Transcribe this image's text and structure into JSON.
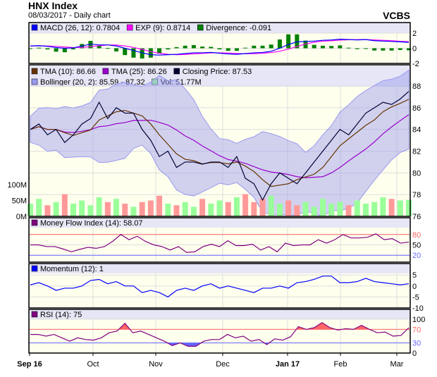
{
  "header": {
    "title": "HNX Index",
    "subtitle": "08/03/2017 - Daily chart",
    "brand": "VCBS"
  },
  "colors": {
    "plot_bg": "#ffffee",
    "legend_bg": "#e6e6f6",
    "macd": "#0000ff",
    "exp": "#ff00ff",
    "divergence": "#008000",
    "tma10": "#663300",
    "tma25": "#9900cc",
    "close": "#000033",
    "bollinger": "#9999ee",
    "vol_up": "#99ff99",
    "vol_down": "#ff9999",
    "mfi": "#800080",
    "momentum": "#0000ff",
    "rsi": "#800080",
    "upper": "#ff6666",
    "lower": "#6666ff"
  },
  "chart_data": [
    {
      "type": "line",
      "name": "macd",
      "legend": [
        "MACD (26, 12): 0.7804",
        "EXP (9): 0.8714",
        "Divergence: -0.091"
      ],
      "ylim": [
        -2,
        2
      ],
      "yticks": [
        "2",
        "0",
        "-2"
      ],
      "macd": [
        0.3,
        0.35,
        0.25,
        0.1,
        0,
        0.05,
        0.3,
        0.55,
        0.45,
        0.45,
        0.3,
        0,
        -0.3,
        -0.6,
        -0.85,
        -0.9,
        -0.85,
        -0.8,
        -0.7,
        -0.6,
        -0.6,
        -0.55,
        -0.65,
        -0.75,
        -0.8,
        -0.7,
        -0.6,
        -0.55,
        -0.4,
        0,
        0.5,
        0.85,
        0.9,
        0.95,
        1.05,
        1.1,
        1.2,
        1.15,
        1.1,
        1.15,
        1.0,
        0.95,
        0.9,
        0.85,
        0.78
      ]
    },
    {
      "type": "line",
      "name": "price",
      "legend": [
        "TMA (10): 86.66",
        "TMA (25): 86.26",
        "Closing Price: 87.53",
        "Bollinger (20, 2): 85.59 - 87.32",
        "Vol: 51.77M"
      ],
      "ylim": [
        76,
        88
      ],
      "yticks": [
        "88",
        "86",
        "84",
        "82",
        "80",
        "78",
        "76"
      ],
      "vol_ticks": [
        "100M",
        "50M",
        "0M"
      ],
      "close": [
        84,
        84.5,
        83.5,
        84,
        82.8,
        83.5,
        84.5,
        85,
        86.5,
        85,
        86,
        85.5,
        85.5,
        84,
        83,
        81.5,
        82,
        80.5,
        81,
        81,
        80.8,
        81,
        81,
        80.5,
        81.5,
        79.5,
        79,
        77.5,
        79,
        80,
        79.5,
        79,
        80,
        81,
        82,
        83,
        84,
        83.5,
        84.5,
        85.5,
        86,
        86.5,
        86.3,
        86.8,
        87.5
      ],
      "volume_m": [
        40,
        55,
        35,
        45,
        70,
        40,
        50,
        35,
        60,
        45,
        55,
        40,
        30,
        45,
        50,
        65,
        40,
        35,
        45,
        30,
        55,
        40,
        50,
        45,
        60,
        70,
        45,
        55,
        65,
        40,
        50,
        35,
        45,
        30,
        55,
        40,
        45,
        35,
        50,
        40,
        45,
        60,
        55,
        50,
        52
      ]
    },
    {
      "type": "line",
      "name": "mfi",
      "legend": [
        "Money Flow Index (14): 58.07"
      ],
      "ylim": [
        0,
        100
      ],
      "yticks": [
        "80",
        "50",
        "20"
      ],
      "values": [
        50,
        50,
        45,
        45,
        38,
        30,
        37,
        43,
        40,
        45,
        60,
        80,
        65,
        75,
        60,
        50,
        45,
        35,
        45,
        28,
        30,
        45,
        52,
        45,
        62,
        48,
        48,
        52,
        35,
        45,
        30,
        55,
        48,
        50,
        50,
        65,
        55,
        65,
        80,
        70,
        70,
        72,
        82,
        65,
        68,
        55,
        58
      ]
    },
    {
      "type": "line",
      "name": "momentum",
      "legend": [
        "Momentum (12): 1"
      ],
      "ylim": [
        -10,
        7
      ],
      "yticks": [
        "5",
        "0",
        "-5",
        "-10"
      ],
      "values": [
        0.5,
        1.5,
        0,
        -2,
        -1,
        -1,
        0,
        2.5,
        3,
        1,
        2,
        0,
        0,
        -3,
        -2,
        -3,
        -5,
        -2,
        -1,
        -2,
        0,
        1,
        -1,
        0,
        -1,
        -2,
        -3,
        -1,
        -1,
        0,
        -1,
        1.5,
        2,
        3,
        4.5,
        4.5,
        1.5,
        1.5,
        2,
        3.5,
        2,
        1.5,
        1,
        0.5,
        1
      ]
    },
    {
      "type": "line",
      "name": "rsi",
      "legend": [
        "RSI (14): 75"
      ],
      "ylim": [
        0,
        100
      ],
      "yticks": [
        "100",
        "70",
        "30",
        "0"
      ],
      "values": [
        55,
        55,
        50,
        55,
        45,
        35,
        45,
        40,
        38,
        45,
        60,
        65,
        88,
        60,
        65,
        55,
        45,
        35,
        22,
        30,
        20,
        20,
        35,
        40,
        40,
        55,
        45,
        50,
        35,
        40,
        25,
        42,
        38,
        48,
        78,
        70,
        75,
        90,
        75,
        68,
        72,
        70,
        82,
        70,
        60,
        62,
        50,
        52,
        75
      ]
    }
  ],
  "xaxis": {
    "labels": [
      "Sep 16",
      "Oct",
      "Nov",
      "Dec",
      "Jan 17",
      "Feb",
      "Mar"
    ],
    "bold": [
      true,
      false,
      false,
      false,
      true,
      false,
      false
    ]
  }
}
